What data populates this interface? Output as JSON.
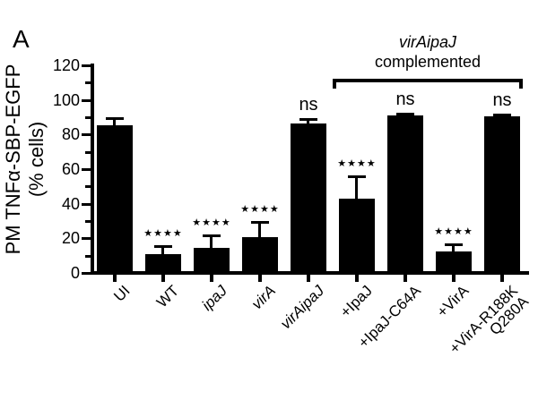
{
  "panel_label": "A",
  "chart_data": {
    "type": "bar",
    "title": "",
    "ylabel_line1": "PM TNFα-SBP-EGFP",
    "ylabel_line2": "(% cells)",
    "ylim": [
      0,
      120
    ],
    "yticks": [
      0,
      20,
      40,
      60,
      80,
      100,
      120
    ],
    "minor_ticks": [
      10,
      30,
      50,
      70,
      90,
      110
    ],
    "grid": false,
    "bar_color": "#000000",
    "background_color": "#ffffff",
    "categories": [
      {
        "lines": [
          "UI"
        ],
        "italic": false
      },
      {
        "lines": [
          "WT"
        ],
        "italic": false
      },
      {
        "lines": [
          "ipaJ"
        ],
        "italic": true
      },
      {
        "lines": [
          "virA"
        ],
        "italic": true
      },
      {
        "lines": [
          "virAipaJ"
        ],
        "italic": true
      },
      {
        "lines": [
          "+IpaJ"
        ],
        "italic": false
      },
      {
        "lines": [
          "+IpaJ-C64A"
        ],
        "italic": false
      },
      {
        "lines": [
          "+VirA"
        ],
        "italic": false
      },
      {
        "lines": [
          "+VirA-R188K",
          "Q280A"
        ],
        "italic": false
      }
    ],
    "values": [
      85.5,
      11,
      14.5,
      20.5,
      86.5,
      43,
      91,
      12.5,
      90.5
    ],
    "errors": [
      4,
      4.5,
      7,
      9,
      2.5,
      13,
      1,
      4,
      1
    ],
    "significance": [
      "",
      "★★★★",
      "★★★★",
      "★★★★",
      "ns",
      "★★★★",
      "ns",
      "★★★★",
      "ns"
    ],
    "bracket": {
      "label_line1": "virAipaJ",
      "label_line2": "complemented",
      "start_index": 5,
      "end_index": 8
    }
  }
}
